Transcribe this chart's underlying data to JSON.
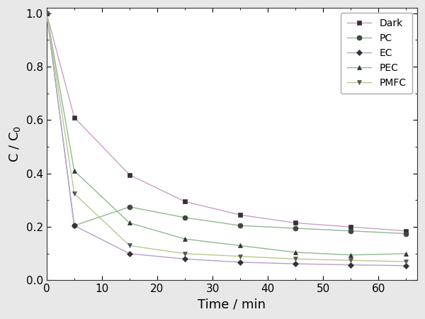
{
  "title": "",
  "xlabel": "Time / min",
  "ylabel": "C / C$_0$",
  "xlim": [
    0,
    67
  ],
  "ylim": [
    0.0,
    1.02
  ],
  "xticks": [
    0,
    10,
    20,
    30,
    40,
    50,
    60
  ],
  "yticks": [
    0.0,
    0.2,
    0.4,
    0.6,
    0.8,
    1.0
  ],
  "series": [
    {
      "label": "Dark",
      "line_color": "#c8a0c8",
      "marker_color": "#333333",
      "marker": "s",
      "markersize": 5,
      "x": [
        0,
        5,
        15,
        25,
        35,
        45,
        55,
        65
      ],
      "y": [
        1.0,
        0.61,
        0.395,
        0.295,
        0.245,
        0.215,
        0.2,
        0.185
      ]
    },
    {
      "label": "PC",
      "line_color": "#90b890",
      "marker_color": "#444444",
      "marker": "o",
      "markersize": 5,
      "x": [
        0,
        5,
        15,
        25,
        35,
        45,
        55,
        65
      ],
      "y": [
        1.0,
        0.205,
        0.275,
        0.235,
        0.205,
        0.195,
        0.185,
        0.175
      ]
    },
    {
      "label": "EC",
      "line_color": "#b8a0c8",
      "marker_color": "#333333",
      "marker": "D",
      "markersize": 4,
      "x": [
        0,
        5,
        15,
        25,
        35,
        45,
        55,
        65
      ],
      "y": [
        1.0,
        0.205,
        0.1,
        0.08,
        0.068,
        0.062,
        0.058,
        0.055
      ]
    },
    {
      "label": "PEC",
      "line_color": "#90b890",
      "marker_color": "#333333",
      "marker": "^",
      "markersize": 5,
      "x": [
        0,
        5,
        15,
        25,
        35,
        45,
        55,
        65
      ],
      "y": [
        1.0,
        0.41,
        0.215,
        0.155,
        0.13,
        0.105,
        0.095,
        0.1
      ]
    },
    {
      "label": "PMFC",
      "line_color": "#b8c890",
      "marker_color": "#555555",
      "marker": "v",
      "markersize": 5,
      "x": [
        0,
        5,
        15,
        25,
        35,
        45,
        55,
        65
      ],
      "y": [
        1.0,
        0.325,
        0.13,
        0.1,
        0.09,
        0.08,
        0.075,
        0.07
      ]
    }
  ],
  "legend_loc": "upper right",
  "legend_fontsize": 10,
  "axis_label_fontsize": 13,
  "tick_fontsize": 11,
  "linewidth": 1.0,
  "figure_facecolor": "#e8e8e8",
  "axes_facecolor": "#ffffff"
}
